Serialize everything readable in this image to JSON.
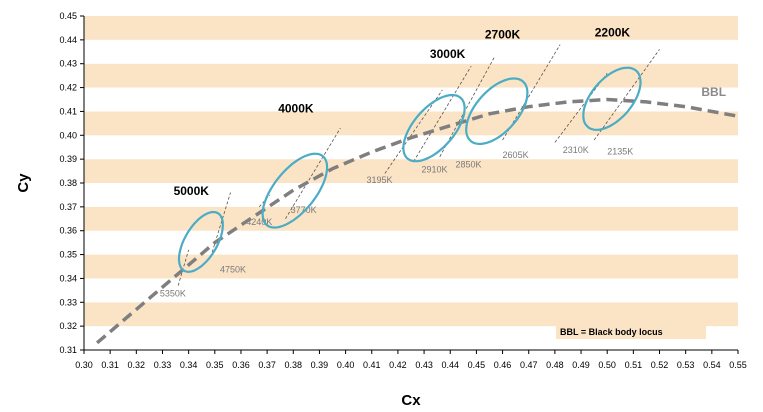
{
  "chart_data": {
    "type": "scatter",
    "title": "",
    "xlabel": "Cx",
    "ylabel": "Cy",
    "xlim": [
      0.3,
      0.55
    ],
    "ylim": [
      0.31,
      0.45
    ],
    "x_ticks": [
      "0.30",
      "0.31",
      "0.32",
      "0.33",
      "0.34",
      "0.35",
      "0.36",
      "0.37",
      "0.38",
      "0.39",
      "0.40",
      "0.41",
      "0.42",
      "0.43",
      "0.44",
      "0.45",
      "0.46",
      "0.47",
      "0.48",
      "0.49",
      "0.50",
      "0.51",
      "0.52",
      "0.53",
      "0.54",
      "0.55"
    ],
    "y_ticks": [
      "0.31",
      "0.32",
      "0.33",
      "0.34",
      "0.35",
      "0.36",
      "0.37",
      "0.38",
      "0.39",
      "0.40",
      "0.41",
      "0.42",
      "0.43",
      "0.44",
      "0.45"
    ],
    "band_color": "#fbe4c6",
    "ellipse_color": "#4bacc6",
    "bbl_color": "#7f7f7f",
    "bbl_label": "BBL",
    "bbl_curve": [
      {
        "x": 0.305,
        "y": 0.313
      },
      {
        "x": 0.32,
        "y": 0.327
      },
      {
        "x": 0.335,
        "y": 0.341
      },
      {
        "x": 0.35,
        "y": 0.355
      },
      {
        "x": 0.365,
        "y": 0.366
      },
      {
        "x": 0.38,
        "y": 0.377
      },
      {
        "x": 0.395,
        "y": 0.386
      },
      {
        "x": 0.41,
        "y": 0.393
      },
      {
        "x": 0.425,
        "y": 0.399
      },
      {
        "x": 0.44,
        "y": 0.404
      },
      {
        "x": 0.455,
        "y": 0.409
      },
      {
        "x": 0.47,
        "y": 0.412
      },
      {
        "x": 0.485,
        "y": 0.414
      },
      {
        "x": 0.5,
        "y": 0.415
      },
      {
        "x": 0.515,
        "y": 0.414
      },
      {
        "x": 0.53,
        "y": 0.412
      },
      {
        "x": 0.55,
        "y": 0.408
      }
    ],
    "ellipses": [
      {
        "label": "5000K",
        "cx": 0.3447,
        "cy": 0.3553,
        "rx": 0.0137,
        "ry": 0.0063,
        "angle": 63,
        "label_x": 0.341,
        "label_y": 0.375
      },
      {
        "label": "4000K",
        "cx": 0.3806,
        "cy": 0.3768,
        "rx": 0.018,
        "ry": 0.0082,
        "angle": 55,
        "label_x": 0.381,
        "label_y": 0.4095
      },
      {
        "label": "3000K",
        "cx": 0.4338,
        "cy": 0.403,
        "rx": 0.0163,
        "ry": 0.008,
        "angle": 53,
        "label_x": 0.439,
        "label_y": 0.4325
      },
      {
        "label": "2700K",
        "cx": 0.4578,
        "cy": 0.4101,
        "rx": 0.016,
        "ry": 0.0083,
        "angle": 53,
        "label_x": 0.46,
        "label_y": 0.4405
      },
      {
        "label": "2200K",
        "cx": 0.5018,
        "cy": 0.4153,
        "rx": 0.015,
        "ry": 0.008,
        "angle": 54,
        "label_x": 0.502,
        "label_y": 0.4415
      }
    ],
    "isotherms": [
      {
        "label": "5350K",
        "x1": 0.336,
        "y1": 0.337,
        "x2": 0.34,
        "y2": 0.352,
        "label_x": 0.329,
        "label_y": 0.3325
      },
      {
        "label": "4750K",
        "x1": 0.349,
        "y1": 0.351,
        "x2": 0.356,
        "y2": 0.376,
        "label_x": 0.352,
        "label_y": 0.3425
      },
      {
        "label": "4240K",
        "x1": 0.367,
        "y1": 0.37,
        "x2": 0.371,
        "y2": 0.375,
        "label_x": 0.362,
        "label_y": 0.3625
      },
      {
        "label": "3770K",
        "x1": 0.377,
        "y1": 0.365,
        "x2": 0.398,
        "y2": 0.403,
        "label_x": 0.379,
        "label_y": 0.3675
      },
      {
        "label": "3195K",
        "x1": 0.415,
        "y1": 0.384,
        "x2": 0.437,
        "y2": 0.419,
        "label_x": 0.408,
        "label_y": 0.38
      },
      {
        "label": "2910K",
        "x1": 0.426,
        "y1": 0.389,
        "x2": 0.448,
        "y2": 0.429,
        "label_x": 0.429,
        "label_y": 0.3845
      },
      {
        "label": "2850K",
        "x1": 0.436,
        "y1": 0.391,
        "x2": 0.457,
        "y2": 0.433,
        "label_x": 0.442,
        "label_y": 0.3865
      },
      {
        "label": "2605K",
        "x1": 0.46,
        "y1": 0.398,
        "x2": 0.482,
        "y2": 0.438,
        "label_x": 0.46,
        "label_y": 0.3905
      },
      {
        "label": "2310K",
        "x1": 0.48,
        "y1": 0.397,
        "x2": 0.5,
        "y2": 0.426,
        "label_x": 0.483,
        "label_y": 0.3925
      },
      {
        "label": "2135K",
        "x1": 0.495,
        "y1": 0.398,
        "x2": 0.52,
        "y2": 0.436,
        "label_x": 0.5,
        "label_y": 0.392
      }
    ],
    "note": "BBL = Black body locus"
  }
}
